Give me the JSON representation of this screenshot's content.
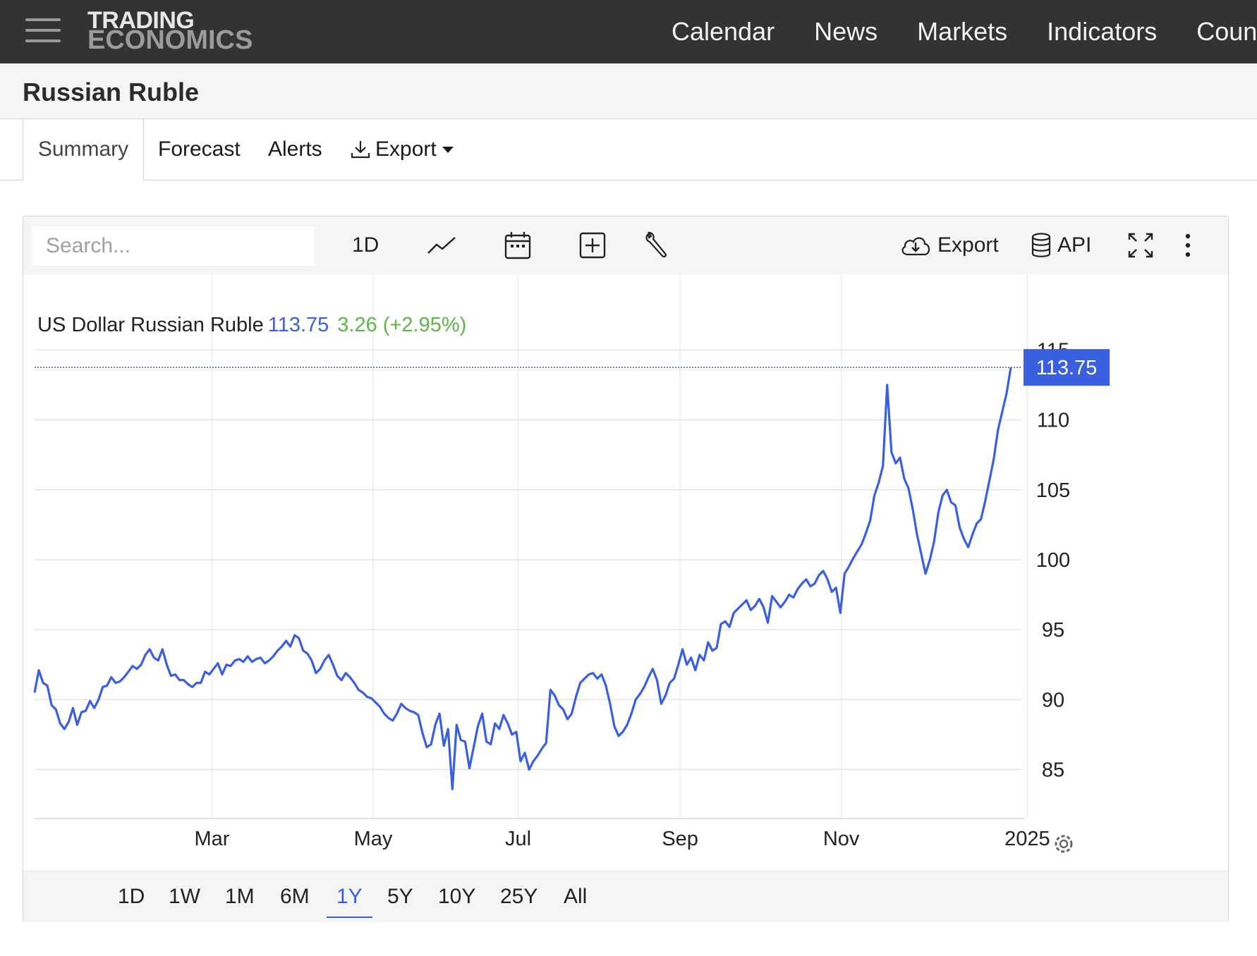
{
  "header": {
    "logo_line1": "TRADING",
    "logo_line2": "ECONOMICS",
    "nav": [
      "Calendar",
      "News",
      "Markets",
      "Indicators",
      "Coun"
    ]
  },
  "page": {
    "title": "Russian Ruble"
  },
  "tabs": {
    "summary": "Summary",
    "forecast": "Forecast",
    "alerts": "Alerts",
    "export": "Export"
  },
  "toolbar": {
    "search_placeholder": "Search...",
    "interval": "1D",
    "export_label": "Export",
    "api_label": "API"
  },
  "legend": {
    "name": "US Dollar Russian Ruble",
    "value": "113.75",
    "change": "3.26 (+2.95%)"
  },
  "ranges": {
    "items": [
      "1D",
      "1W",
      "1M",
      "6M",
      "1Y",
      "5Y",
      "10Y",
      "25Y",
      "All"
    ],
    "active": "1Y"
  },
  "colors": {
    "line": "#3a5fe0",
    "positive": "#5cb845",
    "nav_bg": "#333333"
  },
  "chart_data": {
    "type": "line",
    "title": "US Dollar Russian Ruble",
    "series": [
      {
        "name": "USDRUB",
        "x_start": "2024-01-02",
        "x_end": "2024-12-31",
        "values": [
          90.5,
          92.1,
          91.2,
          91.0,
          89.6,
          89.3,
          88.3,
          87.9,
          88.4,
          89.4,
          88.2,
          89.1,
          89.2,
          89.9,
          89.4,
          90.0,
          90.9,
          91.0,
          91.6,
          91.2,
          91.3,
          91.6,
          92.0,
          92.4,
          92.2,
          92.5,
          93.2,
          93.6,
          93.0,
          92.8,
          93.6,
          92.5,
          91.7,
          91.8,
          91.4,
          91.4,
          91.1,
          90.9,
          91.2,
          91.2,
          92.0,
          91.8,
          92.2,
          92.6,
          91.8,
          92.5,
          92.4,
          92.8,
          92.9,
          92.7,
          93.1,
          92.7,
          92.9,
          93.0,
          92.6,
          92.8,
          93.1,
          93.5,
          93.8,
          94.2,
          93.8,
          94.6,
          94.4,
          93.5,
          93.3,
          92.8,
          91.9,
          92.2,
          92.8,
          93.2,
          92.5,
          91.7,
          91.4,
          91.9,
          91.6,
          91.2,
          90.7,
          90.5,
          90.2,
          90.1,
          89.8,
          89.5,
          89.0,
          88.7,
          88.5,
          89.0,
          89.7,
          89.4,
          89.2,
          89.1,
          88.9,
          87.6,
          86.6,
          86.8,
          88.2,
          89.0,
          86.7,
          87.9,
          83.6,
          88.2,
          87.1,
          87.0,
          85.1,
          86.6,
          88.1,
          89.0,
          87.0,
          86.8,
          88.3,
          87.9,
          88.9,
          88.3,
          87.5,
          87.7,
          85.6,
          86.2,
          85.0,
          85.6,
          86.0,
          86.5,
          86.9,
          90.7,
          90.3,
          89.6,
          89.3,
          88.6,
          89.0,
          90.2,
          91.2,
          91.5,
          91.8,
          91.9,
          91.5,
          91.8,
          91.0,
          89.7,
          88.1,
          87.4,
          87.7,
          88.2,
          89.0,
          90.0,
          90.4,
          90.9,
          91.6,
          92.2,
          91.4,
          89.7,
          90.3,
          91.2,
          91.5,
          92.5,
          93.6,
          92.5,
          93.0,
          92.1,
          93.2,
          92.8,
          94.1,
          93.5,
          93.7,
          95.4,
          95.6,
          95.2,
          96.2,
          96.5,
          96.8,
          97.1,
          96.4,
          96.7,
          97.2,
          96.6,
          95.5,
          97.4,
          97.0,
          96.6,
          97.0,
          97.5,
          97.3,
          97.9,
          98.3,
          98.6,
          98.1,
          98.3,
          98.9,
          99.2,
          98.6,
          97.7,
          98.0,
          96.2,
          99.0,
          99.5,
          100.1,
          100.6,
          101.1,
          101.9,
          102.8,
          104.6,
          105.5,
          106.7,
          112.5,
          107.7,
          106.9,
          107.3,
          105.8,
          105.1,
          103.6,
          101.8,
          100.4,
          99.0,
          100.0,
          101.3,
          103.4,
          104.6,
          105.0,
          104.1,
          103.9,
          102.3,
          101.5,
          100.9,
          101.8,
          102.6,
          102.9,
          104.2,
          105.7,
          107.2,
          109.3,
          110.6,
          111.9,
          113.75
        ],
        "last_value": 113.75
      }
    ],
    "x_ticks": [
      "Mar",
      "May",
      "Jul",
      "Sep",
      "Nov",
      "2025"
    ],
    "y_ticks": [
      85,
      90,
      95,
      100,
      105,
      110,
      115
    ],
    "ylim": [
      81.5,
      119
    ],
    "current_value_label": "113.75",
    "grid": true,
    "legend_position": "top-left"
  }
}
